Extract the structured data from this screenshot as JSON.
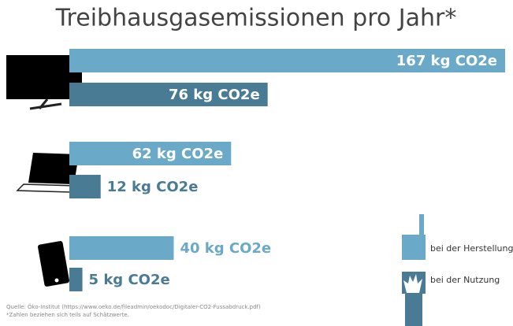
{
  "chart_data": {
    "type": "hbar",
    "title": "Treibhausgasemissionen pro Jahr*",
    "categories": [
      null,
      null,
      null
    ],
    "series": [
      {
        "name": "bei der Herstellung",
        "color": "#6aaac8",
        "values": [
          167,
          62,
          40
        ],
        "value_labels": [
          "167 kg CO2e",
          "62 kg CO2e",
          "40 kg CO2e"
        ]
      },
      {
        "name": "bei der Nutzung",
        "color": "#4a7b95",
        "values": [
          76,
          12,
          5
        ],
        "value_labels": [
          "76 kg CO2e",
          "12 kg CO2e",
          "5 kg CO2e"
        ]
      }
    ],
    "source": "Quelle: Öko-Institut (https://www.oeko.de/fileadmin/oekodoc/Digitaler-CO2-Fussabdruck.pdf)",
    "footnote": "*Zahlen beziehen sich teils auf Schätzwerte."
  }
}
